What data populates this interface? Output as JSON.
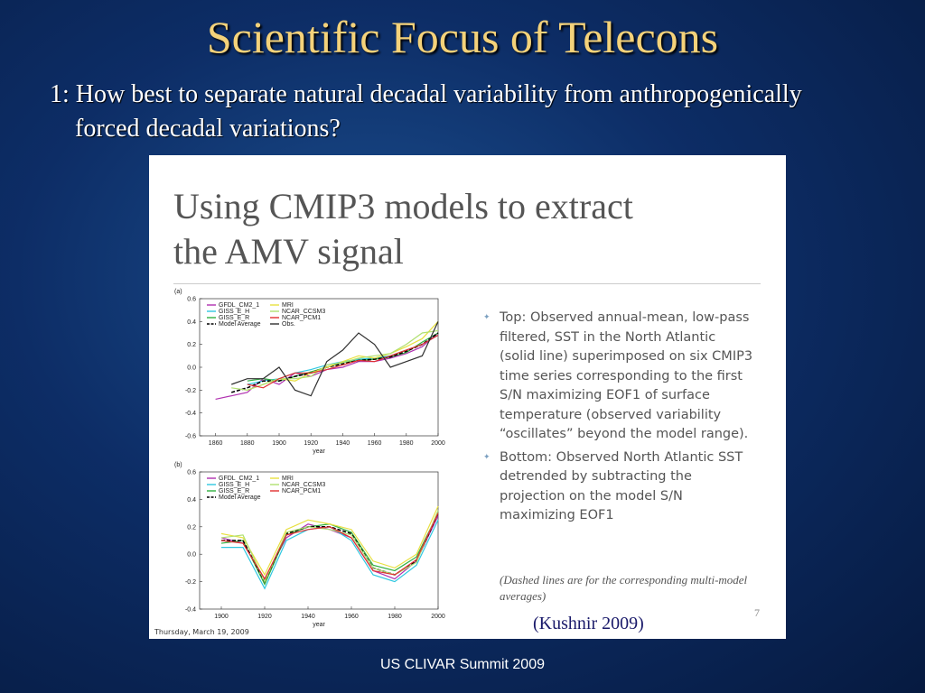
{
  "slide": {
    "title": "Scientific Focus of Telecons",
    "question": "1: How best to separate natural decadal variability from anthropogenically forced decadal variations?",
    "footer": "US CLIVAR Summit 2009",
    "citation": "(Kushnir 2009)",
    "embedded": {
      "heading": [
        "Using CMIP3 models to extract",
        "the AMV signal"
      ],
      "bullets": [
        "Top: Observed annual-mean, low-pass filtered, SST in the North Atlantic (solid line) superimposed on six CMIP3 time series corresponding to the first S/N maximizing EOF1 of surface temperature (observed variability “oscillates” beyond the model range).",
        "Bottom: Observed North Atlantic SST detrended by subtracting the projection on the model S/N maximizing EOF1"
      ],
      "note": "(Dashed lines are for the corresponding multi-model averages)",
      "page_number": "7",
      "date_stamp": "Thursday, March 19, 2009"
    }
  },
  "chart_data": [
    {
      "type": "line",
      "panel_label": "(a)",
      "x_label": "year",
      "x": [
        1860,
        1870,
        1880,
        1890,
        1900,
        1910,
        1920,
        1930,
        1940,
        1950,
        1960,
        1970,
        1980,
        1990,
        2000
      ],
      "xlim": [
        1850,
        2000
      ],
      "xticks": [
        1860,
        1880,
        1900,
        1920,
        1940,
        1960,
        1980,
        2000
      ],
      "ylim": [
        -0.6,
        0.6
      ],
      "yticks": [
        -0.6,
        -0.4,
        -0.2,
        {
          "value": 0,
          "label": "0.0"
        },
        0.2,
        0.4,
        0.6
      ],
      "series": [
        {
          "name": "GFDL_CM2_1",
          "color": "#b030b0",
          "dash": false,
          "values": [
            -0.28,
            -0.25,
            -0.22,
            -0.1,
            -0.15,
            -0.05,
            -0.08,
            -0.02,
            0.0,
            0.05,
            0.05,
            0.08,
            0.12,
            0.18,
            0.3
          ]
        },
        {
          "name": "GISS_E_H",
          "color": "#30c8e0",
          "dash": false,
          "values": [
            null,
            null,
            -0.15,
            -0.12,
            -0.1,
            -0.05,
            -0.02,
            0.02,
            0.05,
            0.07,
            0.08,
            0.1,
            0.15,
            0.2,
            0.28
          ]
        },
        {
          "name": "GISS_E_R",
          "color": "#30b040",
          "dash": false,
          "values": [
            null,
            null,
            -0.12,
            -0.1,
            -0.12,
            -0.08,
            -0.04,
            0.0,
            0.04,
            0.06,
            0.07,
            0.09,
            0.13,
            0.22,
            0.3
          ]
        },
        {
          "name": "Model Average",
          "color": "#000000",
          "dash": true,
          "values": [
            null,
            -0.22,
            -0.18,
            -0.12,
            -0.12,
            -0.08,
            -0.05,
            0.0,
            0.03,
            0.06,
            0.07,
            0.09,
            0.14,
            0.2,
            0.3
          ]
        },
        {
          "name": "MRI",
          "color": "#e8e040",
          "dash": false,
          "values": [
            null,
            null,
            -0.2,
            -0.15,
            -0.1,
            -0.12,
            -0.05,
            0.0,
            0.05,
            0.1,
            0.08,
            0.12,
            0.18,
            0.25,
            0.4
          ]
        },
        {
          "name": "NCAR_CCSM3",
          "color": "#b0e070",
          "dash": false,
          "values": [
            null,
            -0.18,
            -0.2,
            -0.15,
            -0.1,
            -0.1,
            -0.08,
            0.02,
            0.04,
            0.08,
            0.1,
            0.12,
            0.2,
            0.3,
            0.32
          ]
        },
        {
          "name": "NCAR_PCM1",
          "color": "#e03030",
          "dash": false,
          "values": [
            null,
            null,
            -0.15,
            -0.18,
            -0.1,
            -0.05,
            -0.05,
            -0.02,
            0.02,
            0.06,
            0.05,
            0.1,
            0.15,
            0.2,
            0.28
          ]
        },
        {
          "name": "Obs.",
          "color": "#303030",
          "dash": false,
          "values": [
            null,
            -0.15,
            -0.1,
            -0.1,
            0.0,
            -0.2,
            -0.25,
            0.05,
            0.15,
            0.3,
            0.2,
            0.0,
            0.05,
            0.1,
            0.4
          ]
        }
      ]
    },
    {
      "type": "line",
      "panel_label": "(b)",
      "x_label": "year",
      "x": [
        1900,
        1910,
        1920,
        1930,
        1940,
        1950,
        1960,
        1970,
        1980,
        1990,
        2000
      ],
      "xlim": [
        1890,
        2000
      ],
      "xticks": [
        1900,
        1920,
        1940,
        1960,
        1980,
        2000
      ],
      "ylim": [
        -0.4,
        0.6
      ],
      "yticks": [
        -0.4,
        -0.2,
        {
          "value": 0,
          "label": "0.0"
        },
        0.2,
        0.4,
        0.6
      ],
      "series": [
        {
          "name": "GFDL_CM2_1",
          "color": "#b030b0",
          "dash": false,
          "values": [
            0.12,
            0.08,
            -0.18,
            0.12,
            0.22,
            0.18,
            0.12,
            -0.12,
            -0.18,
            -0.05,
            0.28
          ]
        },
        {
          "name": "GISS_E_H",
          "color": "#30c8e0",
          "dash": false,
          "values": [
            0.05,
            0.05,
            -0.25,
            0.1,
            0.18,
            0.2,
            0.1,
            -0.15,
            -0.2,
            -0.08,
            0.25
          ]
        },
        {
          "name": "GISS_E_R",
          "color": "#30b040",
          "dash": false,
          "values": [
            0.08,
            0.1,
            -0.22,
            0.14,
            0.2,
            0.22,
            0.16,
            -0.08,
            -0.12,
            -0.02,
            0.3
          ]
        },
        {
          "name": "Model Average",
          "color": "#000000",
          "dash": true,
          "values": [
            0.1,
            0.1,
            -0.2,
            0.15,
            0.2,
            0.2,
            0.15,
            -0.1,
            -0.15,
            -0.05,
            0.3
          ]
        },
        {
          "name": "MRI",
          "color": "#e8e040",
          "dash": false,
          "values": [
            0.15,
            0.12,
            -0.15,
            0.18,
            0.25,
            0.22,
            0.18,
            -0.05,
            -0.1,
            0.0,
            0.35
          ]
        },
        {
          "name": "NCAR_CCSM3",
          "color": "#b0e070",
          "dash": false,
          "values": [
            0.12,
            0.14,
            -0.2,
            0.16,
            0.2,
            0.18,
            0.14,
            -0.1,
            -0.15,
            -0.06,
            0.32
          ]
        },
        {
          "name": "NCAR_PCM1",
          "color": "#e03030",
          "dash": false,
          "values": [
            0.1,
            0.08,
            -0.18,
            0.14,
            0.18,
            0.2,
            0.12,
            -0.12,
            -0.15,
            -0.04,
            0.3
          ]
        }
      ]
    }
  ]
}
